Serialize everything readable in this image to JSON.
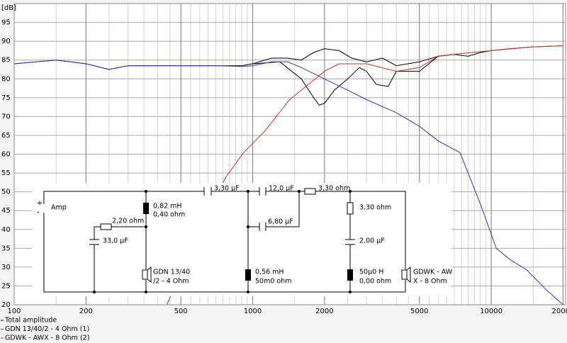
{
  "chart_data": {
    "type": "line",
    "y_unit": "[dB]",
    "log_x": true,
    "grid": true,
    "xlim": [
      100,
      20500
    ],
    "ylim": [
      20,
      100
    ],
    "xticks": [
      100,
      200,
      500,
      1000,
      2000,
      5000,
      10000,
      20000
    ],
    "yticks": [
      20,
      25,
      30,
      35,
      40,
      45,
      50,
      55,
      60,
      65,
      70,
      75,
      80,
      85,
      90,
      95
    ],
    "series": [
      {
        "color": "#000000",
        "x": [
          1000,
          1300,
          1600,
          1800,
          1900,
          2000,
          2200,
          2500,
          2800,
          3000,
          3300,
          3700,
          4000,
          5000,
          6000,
          7000
        ],
        "values": [
          84,
          84.5,
          80,
          75,
          73,
          73.5,
          77,
          80,
          83,
          82,
          78.5,
          78,
          82,
          82,
          86,
          86.5
        ]
      },
      {
        "name": "Total amplitude",
        "color": "#000000",
        "x": [
          100,
          150,
          200,
          250,
          300,
          400,
          500,
          700,
          900,
          1000,
          1200,
          1400,
          1600,
          1800,
          2000,
          2300,
          2600,
          3000,
          3500,
          4000,
          5000,
          6000,
          7000,
          8000,
          9000,
          10000,
          12000,
          15000,
          20000
        ],
        "values": [
          84,
          85,
          84,
          82.5,
          83.5,
          83.5,
          83.5,
          83.5,
          83.5,
          84,
          85.5,
          85.5,
          85,
          87,
          88,
          87.5,
          85.5,
          84.5,
          85.5,
          83.5,
          84.5,
          86,
          86.5,
          86,
          87,
          87.5,
          88,
          88.5,
          88.8
        ]
      },
      {
        "name": "GDN 13/40/2 - 4 Ohm (1)",
        "color": "#3333cc",
        "x": [
          100,
          150,
          200,
          250,
          300,
          400,
          500,
          700,
          900,
          1000,
          1200,
          1400,
          1600,
          2000,
          2500,
          3000,
          4000,
          5000,
          6000,
          7400,
          9100,
          10500,
          12000,
          14000,
          17000,
          20000
        ],
        "values": [
          84,
          85,
          84,
          82.5,
          83.5,
          83.5,
          83.5,
          83.5,
          83.3,
          83.5,
          84.5,
          84.5,
          83,
          80,
          77,
          74.5,
          71,
          67.4,
          63.5,
          60.4,
          46,
          35,
          32,
          29.4,
          24,
          20
        ]
      },
      {
        "name": "GDWK - AWX - 8 Ohm (2)",
        "color": "#cc3322",
        "x": [
          437,
          600,
          770,
          915,
          1120,
          1430,
          1750,
          2000,
          2300,
          3000,
          4000,
          5000,
          6000,
          7400,
          10000,
          15000,
          20000
        ],
        "values": [
          20,
          40,
          53.8,
          60.4,
          66,
          74.5,
          79,
          82,
          84,
          84,
          82,
          83,
          86,
          86.7,
          87.5,
          88.5,
          88.8
        ]
      }
    ]
  },
  "circuit": {
    "plus": "+",
    "minus": "-",
    "amp": "Amp",
    "r1": "2,20 ohm",
    "c1": "33,0 µF",
    "l1": "0,82 mH",
    "l1r": "0,40 ohm",
    "spk1a": "GDN 13/40",
    "spk1b": "/2 - 4 Ohm",
    "c2": "3,30 µF",
    "c3": "12,0 µF",
    "r2": "3,30 ohm",
    "c4": "6,80 µF",
    "l2": "0,56 mH",
    "l2r": "50m0 ohm",
    "r3": "3,30 ohm",
    "c5": "2,00 µF",
    "l3": "50µ0 H",
    "l3r": "0,00 ohm",
    "spk2a": "GDWK - AW",
    "spk2b": "X - 8 Ohm"
  }
}
